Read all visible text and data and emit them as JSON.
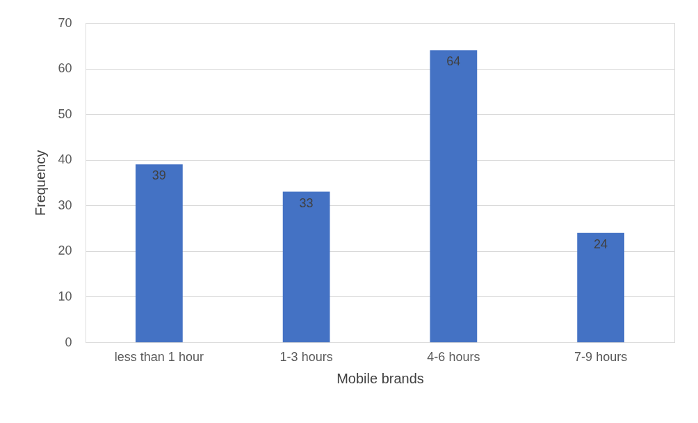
{
  "chart_data": {
    "type": "bar",
    "xlabel": "Mobile brands",
    "ylabel": "Frequency",
    "categories": [
      "less than 1 hour",
      "1-3 hours",
      "4-6 hours",
      "7-9 hours"
    ],
    "values": [
      39,
      33,
      64,
      24
    ],
    "color": "#4472c4",
    "ylim": [
      0,
      70
    ],
    "yticks": [
      0,
      10,
      20,
      30,
      40,
      50,
      60,
      70
    ],
    "grid": "y",
    "data_labels": true
  }
}
